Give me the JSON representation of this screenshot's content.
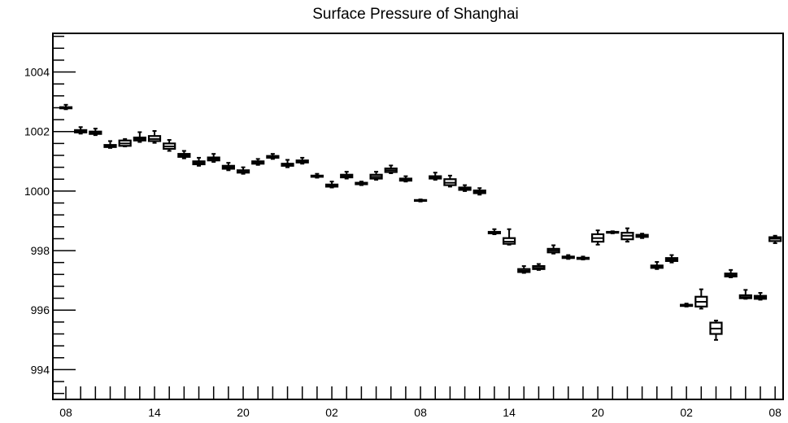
{
  "chart_data": {
    "type": "box",
    "title": "Surface Pressure of Shanghai",
    "xlabel": "",
    "ylabel": "",
    "ylim": [
      993.0,
      1005.3
    ],
    "y_ticks": [
      994,
      996,
      998,
      1000,
      1002,
      1004
    ],
    "x_ticks": [
      {
        "index": 0,
        "label": "08"
      },
      {
        "index": 6,
        "label": "14"
      },
      {
        "index": 12,
        "label": "20"
      },
      {
        "index": 18,
        "label": "02"
      },
      {
        "index": 24,
        "label": "08"
      },
      {
        "index": 30,
        "label": "14"
      },
      {
        "index": 36,
        "label": "20"
      },
      {
        "index": 42,
        "label": "02"
      },
      {
        "index": 48,
        "label": "08"
      }
    ],
    "n_hours": 49,
    "grid": false,
    "boxes": [
      {
        "hour": 0,
        "min": 1002.75,
        "q1": 1002.78,
        "median": 1002.8,
        "q3": 1002.82,
        "max": 1002.9
      },
      {
        "hour": 1,
        "min": 1001.93,
        "q1": 1001.97,
        "median": 1002.0,
        "q3": 1002.05,
        "max": 1002.15
      },
      {
        "hour": 2,
        "min": 1001.88,
        "q1": 1001.92,
        "median": 1001.95,
        "q3": 1002.0,
        "max": 1002.1
      },
      {
        "hour": 3,
        "min": 1001.45,
        "q1": 1001.48,
        "median": 1001.52,
        "q3": 1001.55,
        "max": 1001.68
      },
      {
        "hour": 4,
        "min": 1001.5,
        "q1": 1001.52,
        "median": 1001.6,
        "q3": 1001.7,
        "max": 1001.75
      },
      {
        "hour": 5,
        "min": 1001.65,
        "q1": 1001.7,
        "median": 1001.75,
        "q3": 1001.8,
        "max": 1001.98
      },
      {
        "hour": 6,
        "min": 1001.62,
        "q1": 1001.68,
        "median": 1001.75,
        "q3": 1001.85,
        "max": 1002.02
      },
      {
        "hour": 7,
        "min": 1001.35,
        "q1": 1001.42,
        "median": 1001.5,
        "q3": 1001.6,
        "max": 1001.72
      },
      {
        "hour": 8,
        "min": 1001.1,
        "q1": 1001.15,
        "median": 1001.2,
        "q3": 1001.25,
        "max": 1001.35
      },
      {
        "hour": 9,
        "min": 1000.85,
        "q1": 1000.9,
        "median": 1000.95,
        "q3": 1001.0,
        "max": 1001.12
      },
      {
        "hour": 10,
        "min": 1000.98,
        "q1": 1001.03,
        "median": 1001.08,
        "q3": 1001.13,
        "max": 1001.25
      },
      {
        "hour": 11,
        "min": 1000.7,
        "q1": 1000.75,
        "median": 1000.8,
        "q3": 1000.85,
        "max": 1000.95
      },
      {
        "hour": 12,
        "min": 1000.58,
        "q1": 1000.62,
        "median": 1000.65,
        "q3": 1000.7,
        "max": 1000.8
      },
      {
        "hour": 13,
        "min": 1000.88,
        "q1": 1000.92,
        "median": 1000.95,
        "q3": 1001.0,
        "max": 1001.08
      },
      {
        "hour": 14,
        "min": 1001.08,
        "q1": 1001.12,
        "median": 1001.15,
        "q3": 1001.18,
        "max": 1001.25
      },
      {
        "hour": 15,
        "min": 1000.8,
        "q1": 1000.85,
        "median": 1000.88,
        "q3": 1000.92,
        "max": 1001.05
      },
      {
        "hour": 16,
        "min": 1000.92,
        "q1": 1000.96,
        "median": 1001.0,
        "q3": 1001.03,
        "max": 1001.12
      },
      {
        "hour": 17,
        "min": 1000.45,
        "q1": 1000.48,
        "median": 1000.5,
        "q3": 1000.52,
        "max": 1000.58
      },
      {
        "hour": 18,
        "min": 1000.12,
        "q1": 1000.15,
        "median": 1000.18,
        "q3": 1000.22,
        "max": 1000.32
      },
      {
        "hour": 19,
        "min": 1000.42,
        "q1": 1000.46,
        "median": 1000.5,
        "q3": 1000.55,
        "max": 1000.65
      },
      {
        "hour": 20,
        "min": 1000.2,
        "q1": 1000.23,
        "median": 1000.25,
        "q3": 1000.28,
        "max": 1000.32
      },
      {
        "hour": 21,
        "min": 1000.38,
        "q1": 1000.42,
        "median": 1000.48,
        "q3": 1000.55,
        "max": 1000.65
      },
      {
        "hour": 22,
        "min": 1000.6,
        "q1": 1000.64,
        "median": 1000.7,
        "q3": 1000.76,
        "max": 1000.86
      },
      {
        "hour": 23,
        "min": 1000.32,
        "q1": 1000.35,
        "median": 1000.38,
        "q3": 1000.42,
        "max": 1000.5
      },
      {
        "hour": 24,
        "min": 999.65,
        "q1": 999.67,
        "median": 999.68,
        "q3": 999.7,
        "max": 999.72
      },
      {
        "hour": 25,
        "min": 1000.38,
        "q1": 1000.42,
        "median": 1000.45,
        "q3": 1000.5,
        "max": 1000.62
      },
      {
        "hour": 26,
        "min": 1000.15,
        "q1": 1000.2,
        "median": 1000.28,
        "q3": 1000.4,
        "max": 1000.52
      },
      {
        "hour": 27,
        "min": 1000.0,
        "q1": 1000.04,
        "median": 1000.08,
        "q3": 1000.12,
        "max": 1000.2
      },
      {
        "hour": 28,
        "min": 999.88,
        "q1": 999.93,
        "median": 999.97,
        "q3": 1000.02,
        "max": 1000.1
      },
      {
        "hour": 29,
        "min": 998.55,
        "q1": 998.58,
        "median": 998.6,
        "q3": 998.63,
        "max": 998.72
      },
      {
        "hour": 30,
        "min": 998.2,
        "q1": 998.23,
        "median": 998.3,
        "q3": 998.42,
        "max": 998.72
      },
      {
        "hour": 31,
        "min": 997.25,
        "q1": 997.28,
        "median": 997.32,
        "q3": 997.38,
        "max": 997.48
      },
      {
        "hour": 32,
        "min": 997.35,
        "q1": 997.38,
        "median": 997.42,
        "q3": 997.48,
        "max": 997.55
      },
      {
        "hour": 33,
        "min": 997.9,
        "q1": 997.94,
        "median": 998.0,
        "q3": 998.06,
        "max": 998.18
      },
      {
        "hour": 34,
        "min": 997.72,
        "q1": 997.75,
        "median": 997.78,
        "q3": 997.8,
        "max": 997.85
      },
      {
        "hour": 35,
        "min": 997.7,
        "q1": 997.72,
        "median": 997.74,
        "q3": 997.76,
        "max": 997.8
      },
      {
        "hour": 36,
        "min": 998.2,
        "q1": 998.3,
        "median": 998.42,
        "q3": 998.55,
        "max": 998.68
      },
      {
        "hour": 37,
        "min": 998.58,
        "q1": 998.6,
        "median": 998.62,
        "q3": 998.63,
        "max": 998.65
      },
      {
        "hour": 38,
        "min": 998.3,
        "q1": 998.38,
        "median": 998.5,
        "q3": 998.6,
        "max": 998.75
      },
      {
        "hour": 39,
        "min": 998.42,
        "q1": 998.46,
        "median": 998.5,
        "q3": 998.53,
        "max": 998.57
      },
      {
        "hour": 40,
        "min": 997.38,
        "q1": 997.42,
        "median": 997.45,
        "q3": 997.5,
        "max": 997.62
      },
      {
        "hour": 41,
        "min": 997.6,
        "q1": 997.65,
        "median": 997.7,
        "q3": 997.75,
        "max": 997.85
      },
      {
        "hour": 42,
        "min": 996.12,
        "q1": 996.14,
        "median": 996.16,
        "q3": 996.18,
        "max": 996.22
      },
      {
        "hour": 43,
        "min": 996.05,
        "q1": 996.12,
        "median": 996.28,
        "q3": 996.45,
        "max": 996.7
      },
      {
        "hour": 44,
        "min": 995.0,
        "q1": 995.2,
        "median": 995.38,
        "q3": 995.58,
        "max": 995.65
      },
      {
        "hour": 45,
        "min": 997.1,
        "q1": 997.13,
        "median": 997.18,
        "q3": 997.23,
        "max": 997.35
      },
      {
        "hour": 46,
        "min": 996.38,
        "q1": 996.4,
        "median": 996.44,
        "q3": 996.5,
        "max": 996.68
      },
      {
        "hour": 47,
        "min": 996.35,
        "q1": 996.38,
        "median": 996.43,
        "q3": 996.48,
        "max": 996.58
      },
      {
        "hour": 48,
        "min": 998.25,
        "q1": 998.32,
        "median": 998.4,
        "q3": 998.45,
        "max": 998.5
      }
    ]
  }
}
